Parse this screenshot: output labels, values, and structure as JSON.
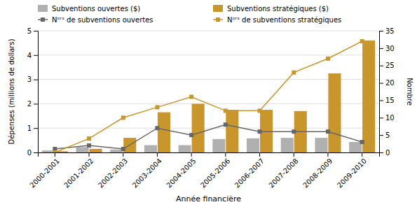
{
  "chart_data": {
    "type": "bar",
    "categories": [
      "2000-2001",
      "2001-2002",
      "2002-2003",
      "2003-2004",
      "2004-2005",
      "2005-2006",
      "2006-2007",
      "2007-2008",
      "2008-2009",
      "2009-2010"
    ],
    "series": [
      {
        "name": "Subventions ouvertes ($)",
        "type": "bar",
        "color": "#b0b0b0",
        "values": [
          0.08,
          0.22,
          0.12,
          0.3,
          0.3,
          0.55,
          0.58,
          0.6,
          0.6,
          0.43
        ]
      },
      {
        "name": "Subventions stratégiques ($)",
        "type": "bar",
        "color": "#c8962a",
        "values": [
          0.05,
          0.15,
          0.6,
          1.65,
          2.0,
          1.75,
          1.75,
          1.7,
          3.25,
          4.6
        ]
      },
      {
        "name": "Nᵒʳˢ de subventions ouvertes",
        "type": "line",
        "axis": "y2",
        "color": "#666666",
        "marker": "square",
        "values": [
          1,
          2,
          1,
          7,
          5,
          8,
          6,
          6,
          6,
          3
        ]
      },
      {
        "name": "Nᵒʳˢ de subventions stratégiques",
        "type": "line",
        "axis": "y2",
        "color": "#c8962a",
        "marker": "square",
        "values": [
          0,
          4,
          10,
          13,
          16,
          12,
          12,
          23,
          27,
          32
        ]
      }
    ],
    "xlabel": "Année financière",
    "ylabel": "Dépenses (millions de dollars)",
    "y2label": "Nombre",
    "ylim": [
      0,
      5
    ],
    "yticks": [
      0,
      1,
      2,
      3,
      4,
      5
    ],
    "y2lim": [
      0,
      35
    ],
    "y2ticks": [
      0,
      5,
      10,
      15,
      20,
      25,
      30,
      35
    ],
    "grid": true,
    "legend": "top"
  }
}
